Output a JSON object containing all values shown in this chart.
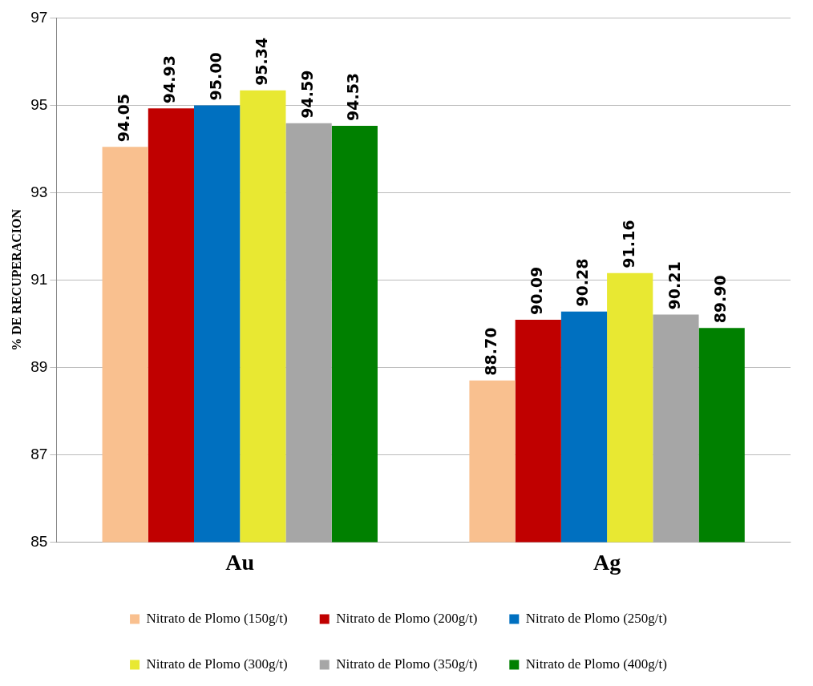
{
  "chart_data": {
    "type": "bar",
    "ylabel": "% DE RECUPERACION",
    "categories": [
      "Au",
      "Ag"
    ],
    "series": [
      {
        "name": "Nitrato de Plomo (150g/t)",
        "color": "#f9c08f",
        "values": [
          94.05,
          88.7
        ],
        "value_labels": [
          "94.05",
          "88.70"
        ]
      },
      {
        "name": "Nitrato de Plomo (200g/t)",
        "color": "#c00000",
        "values": [
          94.93,
          90.09
        ],
        "value_labels": [
          "94.93",
          "90.09"
        ]
      },
      {
        "name": "Nitrato de Plomo (250g/t)",
        "color": "#0070c0",
        "values": [
          95.0,
          90.28
        ],
        "value_labels": [
          "95.00",
          "90.28"
        ]
      },
      {
        "name": "Nitrato de Plomo (300g/t)",
        "color": "#e8e832",
        "values": [
          95.34,
          91.16
        ],
        "value_labels": [
          "95.34",
          "91.16"
        ]
      },
      {
        "name": "Nitrato de Plomo (350g/t)",
        "color": "#a6a6a6",
        "values": [
          94.59,
          90.21
        ],
        "value_labels": [
          "94.59",
          "90.21"
        ]
      },
      {
        "name": "Nitrato de Plomo (400g/t)",
        "color": "#008000",
        "values": [
          94.53,
          89.9
        ],
        "value_labels": [
          "94.53",
          "89.90"
        ]
      }
    ],
    "ylim": [
      85,
      97
    ],
    "yticks": [
      85,
      87,
      89,
      91,
      93,
      95,
      97
    ],
    "grid": "y",
    "legend": "bottom"
  }
}
